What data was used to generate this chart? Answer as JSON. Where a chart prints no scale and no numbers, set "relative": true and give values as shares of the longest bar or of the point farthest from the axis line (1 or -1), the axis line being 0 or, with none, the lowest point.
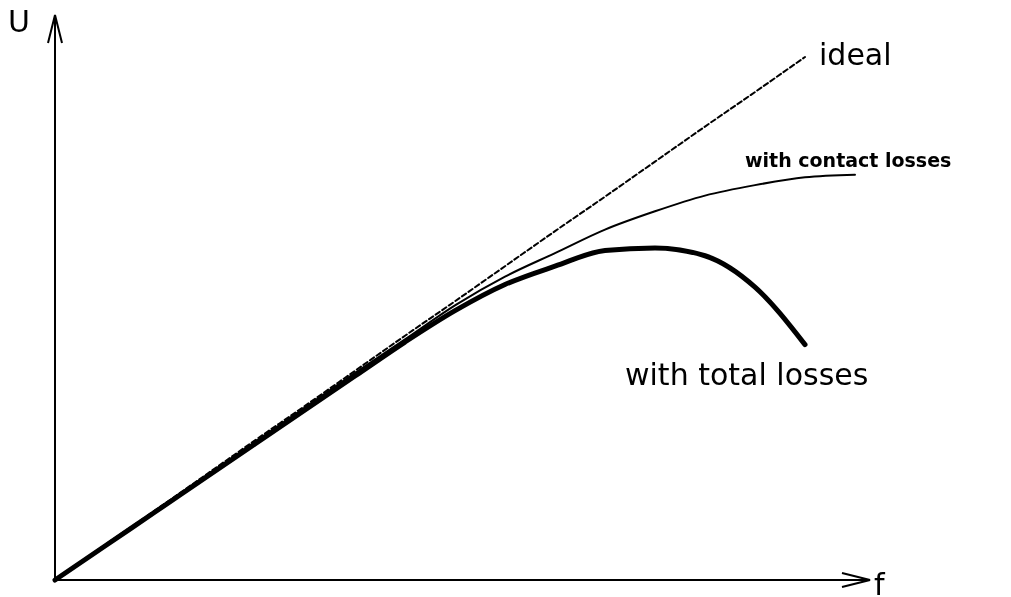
{
  "chart_data": {
    "type": "line",
    "relative": true,
    "xlabel": "f",
    "ylabel": "U",
    "categories": [
      null,
      null,
      null,
      null,
      null,
      null,
      null,
      null,
      null,
      null,
      null,
      null,
      null,
      null,
      null,
      null,
      null
    ],
    "series": [
      {
        "name": "ideal",
        "color": "#000000",
        "line_style": "dashed",
        "values": [
          0,
          0.067,
          0.133,
          0.2,
          0.267,
          0.333,
          0.4,
          0.467,
          0.533,
          0.6,
          0.667,
          0.733,
          0.8,
          0.867,
          0.933,
          1,
          null
        ]
      },
      {
        "name": "with contact losses",
        "color": "#000000",
        "line_style": "solid",
        "values": [
          0,
          0.066,
          0.132,
          0.198,
          0.264,
          0.33,
          0.396,
          0.46,
          0.525,
          0.58,
          0.625,
          0.67,
          0.705,
          0.735,
          0.755,
          0.77,
          0.775
        ]
      },
      {
        "name": "with total losses",
        "color": "#000000",
        "line_style": "solid",
        "values": [
          0,
          0.065,
          0.13,
          0.195,
          0.26,
          0.325,
          0.39,
          0.455,
          0.515,
          0.565,
          0.6,
          0.63,
          0.635,
          0.62,
          0.56,
          0.45,
          null
        ]
      }
    ]
  }
}
